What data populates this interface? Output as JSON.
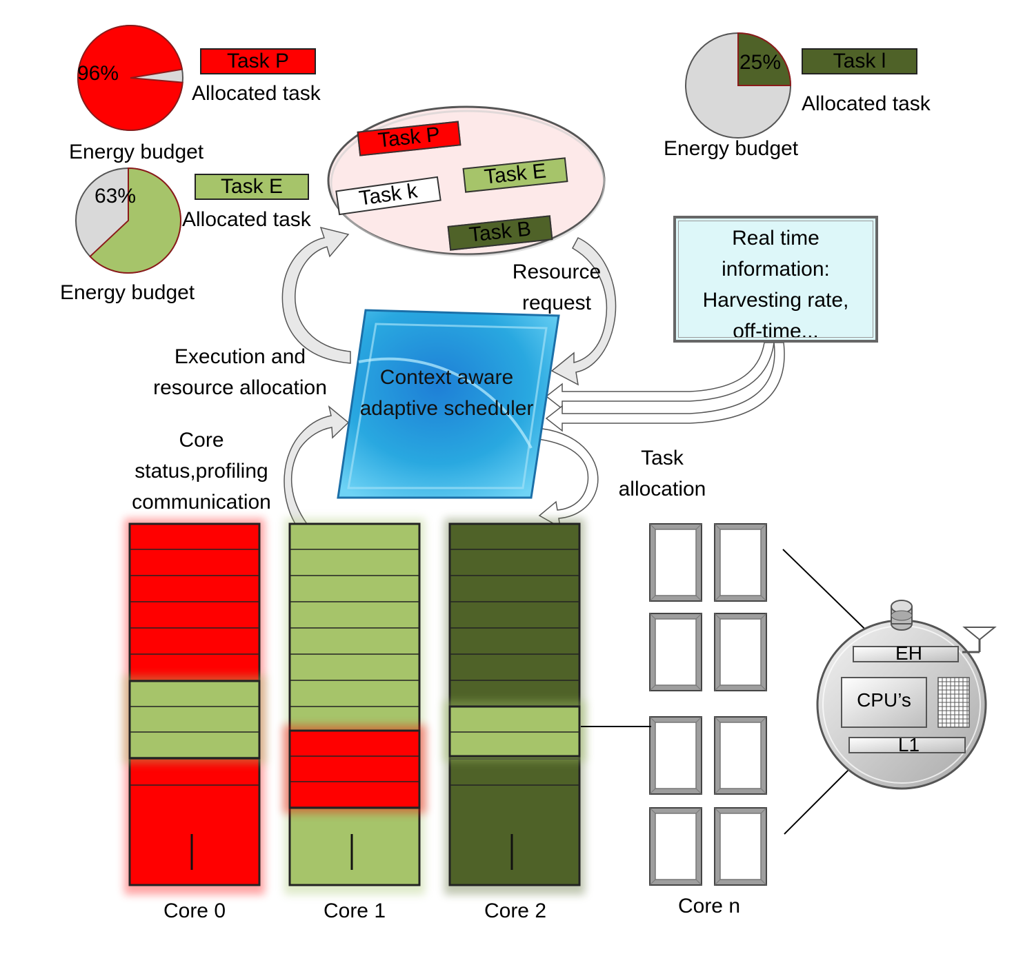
{
  "colors": {
    "red": "#ff0000",
    "light_green": "#a6c46a",
    "dark_green": "#4f6228",
    "gray": "#d9d9d9",
    "scheduler_blue": "#29a8e0",
    "ellipse_fill": "#fde9e9",
    "info_fill": "#ddf7f9"
  },
  "pies": [
    {
      "id": "p",
      "percent_label": "96%",
      "fraction": 0.96,
      "color": "#ff0000",
      "task_label": "Task P",
      "allocated_label": "Allocated task",
      "budget_label": "Energy budget"
    },
    {
      "id": "e",
      "percent_label": "63%",
      "fraction": 0.63,
      "color": "#a6c46a",
      "task_label": "Task E",
      "allocated_label": "Allocated task",
      "budget_label": "Energy budget"
    },
    {
      "id": "l",
      "percent_label": "25%",
      "fraction": 0.25,
      "color": "#4f6228",
      "task_label": "Task l",
      "allocated_label": "Allocated task",
      "budget_label": "Energy budget"
    }
  ],
  "task_pool": {
    "tasks": [
      "Task P",
      "Task k",
      "Task E",
      "Task B"
    ]
  },
  "scheduler": {
    "label": "Context aware adaptive scheduler"
  },
  "info_box": {
    "lines": [
      "Real time",
      "information:",
      "Harvesting rate,",
      "off-time..."
    ]
  },
  "arrows": {
    "resource_request": [
      "Resource",
      "request"
    ],
    "execution": [
      "Execution and",
      "resource allocation"
    ],
    "core_status": [
      "Core",
      "status,profiling",
      "communication"
    ],
    "task_allocation": [
      "Task",
      "allocation"
    ]
  },
  "cores": [
    {
      "label": "Core 0"
    },
    {
      "label": "Core 1"
    },
    {
      "label": "Core 2"
    },
    {
      "label": "Core n"
    }
  ],
  "node": {
    "eh_label": "EH",
    "cpu_label": "CPU’s",
    "l1_label": "L1"
  }
}
